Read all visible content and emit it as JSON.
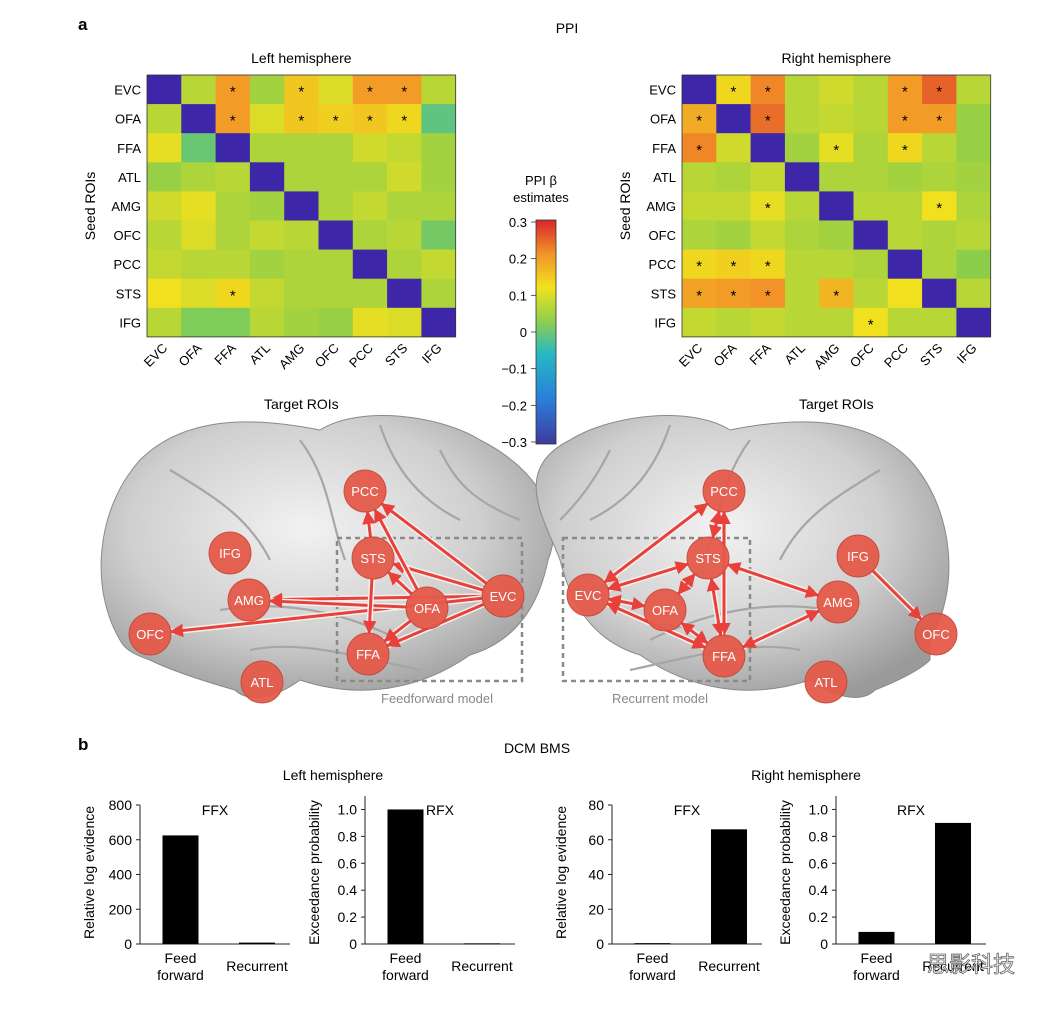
{
  "panel_a": {
    "label": "a",
    "title": "PPI",
    "rois": [
      "EVC",
      "OFA",
      "FFA",
      "ATL",
      "AMG",
      "OFC",
      "PCC",
      "STS",
      "IFG"
    ],
    "y_label": "Seed ROIs",
    "x_label": "Target ROIs",
    "colorbar": {
      "title_line1": "PPI β",
      "title_line2": "estimates",
      "ticks": [
        "0.3",
        "0.2",
        "0.1",
        "0",
        "−0.1",
        "−0.2",
        "−0.3"
      ],
      "range": [
        -0.3,
        0.3
      ]
    }
  },
  "brains": {
    "left": {
      "model_label": "Feedforward model",
      "nodes": [
        "PCC",
        "IFG",
        "STS",
        "AMG",
        "OFA",
        "EVC",
        "OFC",
        "FFA",
        "ATL"
      ]
    },
    "right": {
      "model_label": "Recurrent model",
      "nodes": [
        "PCC",
        "STS",
        "IFG",
        "EVC",
        "OFA",
        "AMG",
        "OFC",
        "FFA",
        "ATL"
      ]
    }
  },
  "panel_b": {
    "label": "b",
    "title": "DCM BMS",
    "left_title": "Left hemisphere",
    "right_title": "Right hemisphere",
    "ylabel_ffx": "Relative log evidence",
    "ylabel_rfx": "Exceedance probability",
    "categories": [
      "Feed forward",
      "Recurrent"
    ]
  },
  "watermark": "思影科技",
  "chart_data": [
    {
      "type": "heatmap",
      "title": "Left hemisphere",
      "xlabel": "Target ROIs",
      "ylabel": "Seed ROIs",
      "x": [
        "EVC",
        "OFA",
        "FFA",
        "ATL",
        "AMG",
        "OFC",
        "PCC",
        "STS",
        "IFG"
      ],
      "y": [
        "EVC",
        "OFA",
        "FFA",
        "ATL",
        "AMG",
        "OFC",
        "PCC",
        "STS",
        "IFG"
      ],
      "vlim": [
        -0.3,
        0.3
      ],
      "values": [
        [
          -0.3,
          0.07,
          0.2,
          0.05,
          0.15,
          0.1,
          0.2,
          0.2,
          0.07
        ],
        [
          0.07,
          -0.3,
          0.2,
          0.1,
          0.15,
          0.14,
          0.15,
          0.13,
          -0.01
        ],
        [
          0.11,
          0.0,
          -0.3,
          0.06,
          0.06,
          0.06,
          0.09,
          0.08,
          0.05
        ],
        [
          0.04,
          0.06,
          0.07,
          -0.3,
          0.06,
          0.06,
          0.06,
          0.09,
          0.05
        ],
        [
          0.09,
          0.11,
          0.06,
          0.05,
          -0.3,
          0.06,
          0.08,
          0.06,
          0.06
        ],
        [
          0.07,
          0.1,
          0.06,
          0.08,
          0.07,
          -0.3,
          0.06,
          0.07,
          0.01
        ],
        [
          0.08,
          0.07,
          0.07,
          0.05,
          0.06,
          0.06,
          -0.3,
          0.06,
          0.08
        ],
        [
          0.12,
          0.1,
          0.13,
          0.08,
          0.06,
          0.06,
          0.06,
          -0.3,
          0.06
        ],
        [
          0.07,
          0.02,
          0.02,
          0.07,
          0.05,
          0.04,
          0.11,
          0.1,
          -0.3
        ]
      ],
      "significant": [
        [
          0,
          2
        ],
        [
          0,
          4
        ],
        [
          0,
          6
        ],
        [
          0,
          7
        ],
        [
          1,
          2
        ],
        [
          1,
          4
        ],
        [
          1,
          5
        ],
        [
          1,
          6
        ],
        [
          1,
          7
        ],
        [
          7,
          2
        ]
      ]
    },
    {
      "type": "heatmap",
      "title": "Right hemisphere",
      "xlabel": "Target ROIs",
      "ylabel": "Seed ROIs",
      "x": [
        "EVC",
        "OFA",
        "FFA",
        "ATL",
        "AMG",
        "OFC",
        "PCC",
        "STS",
        "IFG"
      ],
      "y": [
        "EVC",
        "OFA",
        "FFA",
        "ATL",
        "AMG",
        "OFC",
        "PCC",
        "STS",
        "IFG"
      ],
      "vlim": [
        -0.3,
        0.3
      ],
      "values": [
        [
          -0.3,
          0.13,
          0.22,
          0.07,
          0.09,
          0.07,
          0.2,
          0.25,
          0.07
        ],
        [
          0.18,
          -0.3,
          0.24,
          0.07,
          0.08,
          0.07,
          0.2,
          0.2,
          0.04
        ],
        [
          0.22,
          0.09,
          -0.3,
          0.05,
          0.11,
          0.06,
          0.13,
          0.07,
          0.04
        ],
        [
          0.07,
          0.06,
          0.08,
          -0.3,
          0.06,
          0.06,
          0.05,
          0.06,
          0.05
        ],
        [
          0.08,
          0.08,
          0.11,
          0.07,
          -0.3,
          0.07,
          0.07,
          0.12,
          0.06
        ],
        [
          0.06,
          0.05,
          0.08,
          0.06,
          0.05,
          -0.3,
          0.07,
          0.06,
          0.07
        ],
        [
          0.13,
          0.14,
          0.13,
          0.07,
          0.07,
          0.06,
          -0.3,
          0.06,
          0.03
        ],
        [
          0.19,
          0.2,
          0.21,
          0.07,
          0.17,
          0.07,
          0.12,
          -0.3,
          0.07
        ],
        [
          0.08,
          0.07,
          0.08,
          0.07,
          0.07,
          0.12,
          0.07,
          0.07,
          -0.3
        ]
      ],
      "significant": [
        [
          0,
          1
        ],
        [
          0,
          2
        ],
        [
          0,
          6
        ],
        [
          0,
          7
        ],
        [
          1,
          0
        ],
        [
          1,
          2
        ],
        [
          1,
          6
        ],
        [
          1,
          7
        ],
        [
          2,
          0
        ],
        [
          2,
          4
        ],
        [
          2,
          6
        ],
        [
          4,
          2
        ],
        [
          4,
          7
        ],
        [
          6,
          0
        ],
        [
          6,
          1
        ],
        [
          6,
          2
        ],
        [
          7,
          0
        ],
        [
          7,
          1
        ],
        [
          7,
          2
        ],
        [
          7,
          4
        ],
        [
          8,
          5
        ]
      ]
    },
    {
      "type": "bar",
      "title": "FFX",
      "hemisphere": "Left hemisphere",
      "categories": [
        "Feed forward",
        "Recurrent"
      ],
      "values": [
        625,
        8
      ],
      "ylabel": "Relative log evidence",
      "ylim": [
        0,
        800
      ],
      "yticks": [
        0,
        200,
        400,
        600,
        800
      ]
    },
    {
      "type": "bar",
      "title": "RFX",
      "hemisphere": "Left hemisphere",
      "categories": [
        "Feed forward",
        "Recurrent"
      ],
      "values": [
        1.0,
        0.005
      ],
      "ylabel": "Exceedance probability",
      "ylim": [
        0,
        1.1
      ],
      "yticks": [
        0,
        0.2,
        0.4,
        0.6,
        0.8,
        1.0
      ]
    },
    {
      "type": "bar",
      "title": "FFX",
      "hemisphere": "Right hemisphere",
      "categories": [
        "Feed forward",
        "Recurrent"
      ],
      "values": [
        0.5,
        66
      ],
      "ylabel": "Relative log evidence",
      "ylim": [
        0,
        80
      ],
      "yticks": [
        0,
        20,
        40,
        60,
        80
      ]
    },
    {
      "type": "bar",
      "title": "RFX",
      "hemisphere": "Right hemisphere",
      "categories": [
        "Feed forward",
        "Recurrent"
      ],
      "values": [
        0.09,
        0.9
      ],
      "ylabel": "Exceedance probability",
      "ylim": [
        0,
        1.1
      ],
      "yticks": [
        0,
        0.2,
        0.4,
        0.6,
        0.8,
        1.0
      ]
    }
  ]
}
